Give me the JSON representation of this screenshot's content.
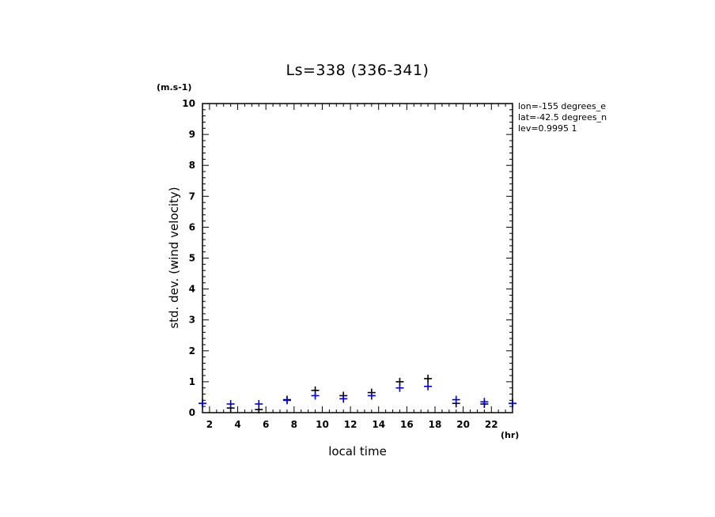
{
  "chart_data": {
    "type": "scatter",
    "title": "Ls=338 (336-341)",
    "xlabel": "local time",
    "ylabel": "std. dev. (wind velocity)",
    "x_unit": "(hr)",
    "y_unit": "(m.s-1)",
    "xlim": [
      1.5,
      23.5
    ],
    "ylim": [
      0,
      10
    ],
    "xticks": [
      2,
      4,
      6,
      8,
      10,
      12,
      14,
      16,
      18,
      20,
      22
    ],
    "yticks": [
      0,
      1,
      2,
      3,
      4,
      5,
      6,
      7,
      8,
      9,
      10
    ],
    "grid": false,
    "series": [
      {
        "color": "#000000",
        "marker": "plus",
        "points": [
          {
            "x": 1.5,
            "y": 0.3
          },
          {
            "x": 3.5,
            "y": 0.15
          },
          {
            "x": 5.5,
            "y": 0.1
          },
          {
            "x": 7.5,
            "y": 0.42
          },
          {
            "x": 9.5,
            "y": 0.72
          },
          {
            "x": 11.5,
            "y": 0.55
          },
          {
            "x": 13.5,
            "y": 0.65
          },
          {
            "x": 15.5,
            "y": 1.0
          },
          {
            "x": 17.5,
            "y": 1.1
          },
          {
            "x": 19.5,
            "y": 0.3
          },
          {
            "x": 21.5,
            "y": 0.28
          },
          {
            "x": 23.5,
            "y": 0.3
          }
        ]
      },
      {
        "color": "#0000cc",
        "marker": "plus",
        "points": [
          {
            "x": 1.5,
            "y": 0.3
          },
          {
            "x": 3.5,
            "y": 0.28
          },
          {
            "x": 5.5,
            "y": 0.28
          },
          {
            "x": 7.5,
            "y": 0.4
          },
          {
            "x": 9.5,
            "y": 0.55
          },
          {
            "x": 11.5,
            "y": 0.45
          },
          {
            "x": 13.5,
            "y": 0.55
          },
          {
            "x": 15.5,
            "y": 0.8
          },
          {
            "x": 17.5,
            "y": 0.85
          },
          {
            "x": 19.5,
            "y": 0.42
          },
          {
            "x": 21.5,
            "y": 0.35
          },
          {
            "x": 23.5,
            "y": 0.3
          }
        ]
      }
    ]
  },
  "info": {
    "lon": "lon=-155 degrees_e",
    "lat": "lat=-42.5 degrees_n",
    "lev": "lev=0.9995 1"
  }
}
